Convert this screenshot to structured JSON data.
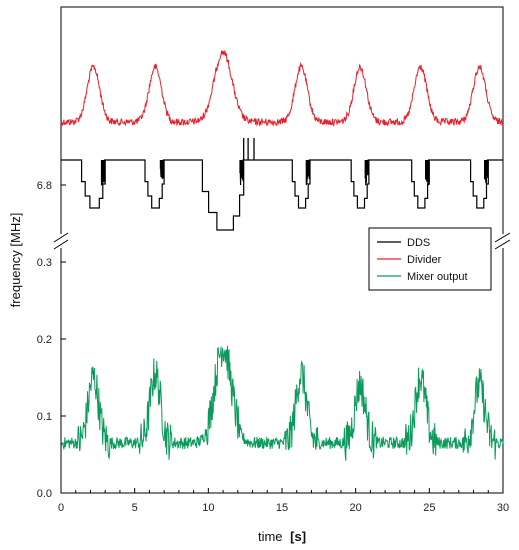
{
  "chart_data": {
    "type": "line",
    "title": "",
    "xlabel": "time",
    "xlabel_unit": "[s]",
    "ylabel": "frequency [MHz]",
    "xlim": [
      0,
      30
    ],
    "x_ticks": [
      0,
      5,
      10,
      15,
      20,
      25,
      30
    ],
    "broken_y_axis": true,
    "lower_ylim": [
      0.0,
      0.3
    ],
    "lower_y_ticks": [
      {
        "value": 0.0,
        "label": "0.0"
      },
      {
        "value": 0.1,
        "label": "0.1"
      },
      {
        "value": 0.2,
        "label": "0.2"
      },
      {
        "value": 0.3,
        "label": "0.3"
      }
    ],
    "upper_y_tick_label": "6.8",
    "legend_position": "right-middle",
    "grid": false,
    "peak_times": [
      2.2,
      6.4,
      11.0,
      16.3,
      20.3,
      24.4,
      28.4
    ],
    "series": [
      {
        "name": "DDS",
        "color": "#000000",
        "panel": "upper",
        "baseline": "high level with stepped downward dips at each peak time",
        "dip_windows": [
          [
            1.4,
            3.0
          ],
          [
            5.7,
            7.0
          ],
          [
            9.6,
            12.4
          ],
          [
            15.7,
            16.9
          ],
          [
            19.7,
            20.9
          ],
          [
            23.8,
            25.0
          ],
          [
            27.8,
            29.0
          ]
        ]
      },
      {
        "name": "Divider",
        "color": "#e8202c",
        "panel": "upper",
        "shape": "noisy baseline with rounded positive peaks at each peak time"
      },
      {
        "name": "Mixer output",
        "color": "#0a9a5a",
        "panel": "lower",
        "baseline_value": 0.065,
        "peaks": [
          {
            "x": 2.2,
            "y": 0.15
          },
          {
            "x": 6.4,
            "y": 0.155
          },
          {
            "x": 11.0,
            "y": 0.19
          },
          {
            "x": 16.3,
            "y": 0.155
          },
          {
            "x": 20.3,
            "y": 0.14
          },
          {
            "x": 24.4,
            "y": 0.15
          },
          {
            "x": 28.4,
            "y": 0.14
          }
        ]
      }
    ]
  }
}
